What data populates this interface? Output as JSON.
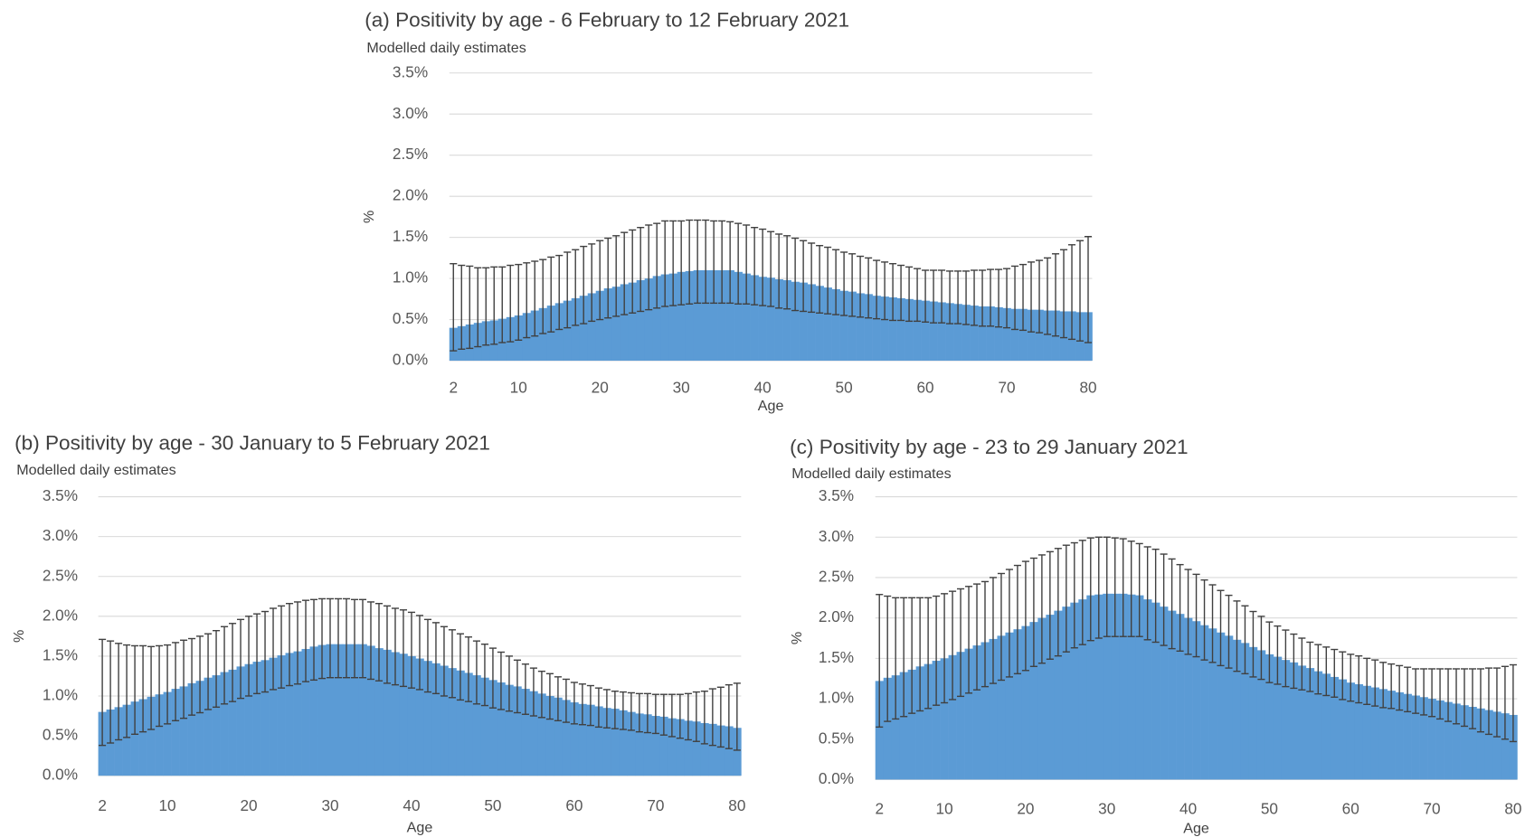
{
  "chart_data": [
    {
      "type": "bar",
      "title": "(a) Positivity by age - 6 February to 12 February 2021",
      "subtitle": "Modelled daily estimates",
      "ylabel": "%",
      "xlabel": "Age",
      "x": [
        2,
        3,
        4,
        5,
        6,
        7,
        8,
        9,
        10,
        11,
        12,
        13,
        14,
        15,
        16,
        17,
        18,
        19,
        20,
        21,
        22,
        23,
        24,
        25,
        26,
        27,
        28,
        29,
        30,
        31,
        32,
        33,
        34,
        35,
        36,
        37,
        38,
        39,
        40,
        41,
        42,
        43,
        44,
        45,
        46,
        47,
        48,
        49,
        50,
        51,
        52,
        53,
        54,
        55,
        56,
        57,
        58,
        59,
        60,
        61,
        62,
        63,
        64,
        65,
        66,
        67,
        68,
        69,
        70,
        71,
        72,
        73,
        74,
        75,
        76,
        77,
        78,
        79,
        80
      ],
      "values": [
        0.4,
        0.42,
        0.44,
        0.46,
        0.48,
        0.49,
        0.51,
        0.53,
        0.55,
        0.58,
        0.61,
        0.64,
        0.67,
        0.7,
        0.73,
        0.76,
        0.79,
        0.82,
        0.85,
        0.88,
        0.9,
        0.93,
        0.95,
        0.98,
        1.0,
        1.03,
        1.05,
        1.06,
        1.08,
        1.09,
        1.1,
        1.1,
        1.1,
        1.1,
        1.1,
        1.08,
        1.06,
        1.04,
        1.02,
        1.01,
        0.99,
        0.98,
        0.96,
        0.95,
        0.93,
        0.91,
        0.89,
        0.87,
        0.85,
        0.84,
        0.82,
        0.81,
        0.79,
        0.78,
        0.77,
        0.76,
        0.75,
        0.74,
        0.73,
        0.72,
        0.71,
        0.7,
        0.69,
        0.68,
        0.67,
        0.66,
        0.66,
        0.65,
        0.64,
        0.63,
        0.63,
        0.62,
        0.62,
        0.61,
        0.61,
        0.6,
        0.6,
        0.59,
        0.59
      ],
      "lower": [
        0.12,
        0.14,
        0.15,
        0.17,
        0.19,
        0.2,
        0.22,
        0.23,
        0.25,
        0.28,
        0.3,
        0.33,
        0.35,
        0.38,
        0.4,
        0.43,
        0.45,
        0.48,
        0.5,
        0.52,
        0.54,
        0.56,
        0.58,
        0.6,
        0.62,
        0.64,
        0.66,
        0.67,
        0.68,
        0.69,
        0.7,
        0.7,
        0.7,
        0.7,
        0.7,
        0.69,
        0.69,
        0.68,
        0.67,
        0.66,
        0.64,
        0.63,
        0.61,
        0.6,
        0.59,
        0.58,
        0.57,
        0.56,
        0.55,
        0.54,
        0.53,
        0.52,
        0.51,
        0.5,
        0.49,
        0.49,
        0.48,
        0.48,
        0.47,
        0.46,
        0.46,
        0.45,
        0.45,
        0.44,
        0.43,
        0.42,
        0.42,
        0.41,
        0.4,
        0.38,
        0.37,
        0.35,
        0.34,
        0.32,
        0.3,
        0.28,
        0.26,
        0.24,
        0.22
      ],
      "upper": [
        1.18,
        1.16,
        1.15,
        1.13,
        1.13,
        1.14,
        1.14,
        1.16,
        1.17,
        1.19,
        1.21,
        1.23,
        1.26,
        1.28,
        1.32,
        1.35,
        1.39,
        1.42,
        1.46,
        1.49,
        1.52,
        1.56,
        1.59,
        1.62,
        1.65,
        1.67,
        1.7,
        1.7,
        1.7,
        1.71,
        1.71,
        1.71,
        1.7,
        1.7,
        1.69,
        1.67,
        1.65,
        1.62,
        1.6,
        1.57,
        1.54,
        1.52,
        1.49,
        1.46,
        1.43,
        1.4,
        1.38,
        1.35,
        1.32,
        1.3,
        1.27,
        1.25,
        1.22,
        1.2,
        1.18,
        1.16,
        1.14,
        1.12,
        1.1,
        1.1,
        1.1,
        1.09,
        1.09,
        1.09,
        1.1,
        1.1,
        1.11,
        1.11,
        1.12,
        1.15,
        1.17,
        1.2,
        1.22,
        1.25,
        1.3,
        1.35,
        1.41,
        1.46,
        1.51
      ],
      "color": "#5b9bd5",
      "error_color": "#404040",
      "grid": true,
      "xlim": [
        1.5,
        80.5
      ],
      "xticks": [
        2,
        10,
        20,
        30,
        40,
        50,
        60,
        70,
        80
      ],
      "ylim": [
        0,
        3.5
      ],
      "yticks": [
        {
          "value": 0,
          "label": "0.0%"
        },
        {
          "value": 0.5,
          "label": "0.5%"
        },
        {
          "value": 1,
          "label": "1.0%"
        },
        {
          "value": 1.5,
          "label": "1.5%"
        },
        {
          "value": 2,
          "label": "2.0%"
        },
        {
          "value": 2.5,
          "label": "2.5%"
        },
        {
          "value": 3,
          "label": "3.0%"
        },
        {
          "value": 3.5,
          "label": "3.5%"
        }
      ]
    },
    {
      "type": "bar",
      "title": "(b) Positivity by age - 30 January to 5 February 2021",
      "subtitle": "Modelled daily estimates",
      "ylabel": "%",
      "xlabel": "Age",
      "x": [
        2,
        3,
        4,
        5,
        6,
        7,
        8,
        9,
        10,
        11,
        12,
        13,
        14,
        15,
        16,
        17,
        18,
        19,
        20,
        21,
        22,
        23,
        24,
        25,
        26,
        27,
        28,
        29,
        30,
        31,
        32,
        33,
        34,
        35,
        36,
        37,
        38,
        39,
        40,
        41,
        42,
        43,
        44,
        45,
        46,
        47,
        48,
        49,
        50,
        51,
        52,
        53,
        54,
        55,
        56,
        57,
        58,
        59,
        60,
        61,
        62,
        63,
        64,
        65,
        66,
        67,
        68,
        69,
        70,
        71,
        72,
        73,
        74,
        75,
        76,
        77,
        78,
        79,
        80
      ],
      "values": [
        0.8,
        0.83,
        0.86,
        0.89,
        0.93,
        0.96,
        0.99,
        1.02,
        1.05,
        1.09,
        1.12,
        1.16,
        1.19,
        1.23,
        1.26,
        1.3,
        1.33,
        1.37,
        1.4,
        1.43,
        1.45,
        1.48,
        1.51,
        1.54,
        1.56,
        1.59,
        1.62,
        1.64,
        1.65,
        1.65,
        1.65,
        1.65,
        1.65,
        1.63,
        1.6,
        1.58,
        1.55,
        1.53,
        1.5,
        1.47,
        1.44,
        1.41,
        1.38,
        1.35,
        1.32,
        1.29,
        1.26,
        1.23,
        1.2,
        1.17,
        1.14,
        1.12,
        1.09,
        1.06,
        1.03,
        1.0,
        0.98,
        0.95,
        0.92,
        0.9,
        0.89,
        0.87,
        0.85,
        0.84,
        0.82,
        0.8,
        0.78,
        0.77,
        0.75,
        0.74,
        0.72,
        0.71,
        0.69,
        0.68,
        0.66,
        0.65,
        0.63,
        0.62,
        0.6
      ],
      "lower": [
        0.38,
        0.41,
        0.45,
        0.48,
        0.52,
        0.55,
        0.58,
        0.62,
        0.65,
        0.69,
        0.72,
        0.76,
        0.79,
        0.83,
        0.86,
        0.9,
        0.93,
        0.97,
        1.0,
        1.03,
        1.05,
        1.08,
        1.1,
        1.13,
        1.15,
        1.18,
        1.2,
        1.22,
        1.23,
        1.23,
        1.23,
        1.23,
        1.23,
        1.21,
        1.19,
        1.16,
        1.14,
        1.12,
        1.1,
        1.08,
        1.05,
        1.03,
        1.0,
        0.98,
        0.95,
        0.93,
        0.9,
        0.88,
        0.85,
        0.83,
        0.81,
        0.79,
        0.77,
        0.75,
        0.73,
        0.71,
        0.69,
        0.67,
        0.65,
        0.64,
        0.63,
        0.61,
        0.6,
        0.59,
        0.58,
        0.57,
        0.55,
        0.54,
        0.53,
        0.51,
        0.49,
        0.47,
        0.45,
        0.43,
        0.4,
        0.38,
        0.36,
        0.34,
        0.32
      ],
      "upper": [
        1.71,
        1.69,
        1.66,
        1.64,
        1.63,
        1.63,
        1.62,
        1.63,
        1.64,
        1.67,
        1.7,
        1.72,
        1.75,
        1.78,
        1.82,
        1.87,
        1.91,
        1.96,
        2.0,
        2.03,
        2.06,
        2.1,
        2.13,
        2.16,
        2.18,
        2.2,
        2.21,
        2.22,
        2.22,
        2.22,
        2.22,
        2.21,
        2.21,
        2.18,
        2.16,
        2.13,
        2.1,
        2.08,
        2.05,
        2.01,
        1.96,
        1.92,
        1.87,
        1.83,
        1.78,
        1.74,
        1.69,
        1.65,
        1.6,
        1.55,
        1.5,
        1.45,
        1.4,
        1.35,
        1.31,
        1.28,
        1.24,
        1.21,
        1.17,
        1.15,
        1.13,
        1.1,
        1.08,
        1.06,
        1.05,
        1.04,
        1.03,
        1.03,
        1.02,
        1.02,
        1.02,
        1.02,
        1.03,
        1.05,
        1.06,
        1.09,
        1.11,
        1.14,
        1.16
      ],
      "color": "#5b9bd5",
      "error_color": "#404040",
      "grid": true,
      "xlim": [
        1.5,
        80.5
      ],
      "xticks": [
        2,
        10,
        20,
        30,
        40,
        50,
        60,
        70,
        80
      ],
      "ylim": [
        0,
        3.5
      ],
      "yticks": [
        {
          "value": 0,
          "label": "0.0%"
        },
        {
          "value": 0.5,
          "label": "0.5%"
        },
        {
          "value": 1,
          "label": "1.0%"
        },
        {
          "value": 1.5,
          "label": "1.5%"
        },
        {
          "value": 2,
          "label": "2.0%"
        },
        {
          "value": 2.5,
          "label": "2.5%"
        },
        {
          "value": 3,
          "label": "3.0%"
        },
        {
          "value": 3.5,
          "label": "3.5%"
        }
      ]
    },
    {
      "type": "bar",
      "title": "(c) Positivity by age - 23 to 29 January 2021",
      "subtitle": "Modelled daily estimates",
      "ylabel": "%",
      "xlabel": "Age",
      "x": [
        2,
        3,
        4,
        5,
        6,
        7,
        8,
        9,
        10,
        11,
        12,
        13,
        14,
        15,
        16,
        17,
        18,
        19,
        20,
        21,
        22,
        23,
        24,
        25,
        26,
        27,
        28,
        29,
        30,
        31,
        32,
        33,
        34,
        35,
        36,
        37,
        38,
        39,
        40,
        41,
        42,
        43,
        44,
        45,
        46,
        47,
        48,
        49,
        50,
        51,
        52,
        53,
        54,
        55,
        56,
        57,
        58,
        59,
        60,
        61,
        62,
        63,
        64,
        65,
        66,
        67,
        68,
        69,
        70,
        71,
        72,
        73,
        74,
        75,
        76,
        77,
        78,
        79,
        80
      ],
      "values": [
        1.22,
        1.26,
        1.29,
        1.33,
        1.36,
        1.4,
        1.43,
        1.47,
        1.5,
        1.54,
        1.58,
        1.62,
        1.66,
        1.7,
        1.74,
        1.78,
        1.82,
        1.86,
        1.9,
        1.95,
        2.0,
        2.04,
        2.09,
        2.14,
        2.19,
        2.23,
        2.28,
        2.29,
        2.3,
        2.3,
        2.3,
        2.29,
        2.28,
        2.23,
        2.19,
        2.14,
        2.09,
        2.05,
        2.0,
        1.96,
        1.91,
        1.87,
        1.82,
        1.78,
        1.73,
        1.69,
        1.64,
        1.6,
        1.55,
        1.52,
        1.48,
        1.45,
        1.41,
        1.38,
        1.34,
        1.31,
        1.27,
        1.24,
        1.2,
        1.18,
        1.16,
        1.14,
        1.12,
        1.1,
        1.08,
        1.06,
        1.04,
        1.02,
        1.0,
        0.98,
        0.96,
        0.94,
        0.92,
        0.9,
        0.88,
        0.86,
        0.84,
        0.82,
        0.8
      ],
      "lower": [
        0.65,
        0.72,
        0.75,
        0.78,
        0.82,
        0.85,
        0.88,
        0.92,
        0.95,
        0.99,
        1.03,
        1.07,
        1.11,
        1.15,
        1.19,
        1.23,
        1.27,
        1.31,
        1.35,
        1.4,
        1.44,
        1.49,
        1.53,
        1.58,
        1.63,
        1.67,
        1.72,
        1.75,
        1.77,
        1.77,
        1.77,
        1.77,
        1.77,
        1.73,
        1.7,
        1.66,
        1.62,
        1.59,
        1.55,
        1.52,
        1.48,
        1.45,
        1.41,
        1.38,
        1.34,
        1.31,
        1.27,
        1.24,
        1.2,
        1.18,
        1.15,
        1.13,
        1.11,
        1.09,
        1.06,
        1.04,
        1.02,
        0.99,
        0.97,
        0.95,
        0.93,
        0.91,
        0.89,
        0.88,
        0.86,
        0.84,
        0.82,
        0.8,
        0.78,
        0.75,
        0.72,
        0.69,
        0.66,
        0.63,
        0.59,
        0.56,
        0.53,
        0.5,
        0.47
      ],
      "upper": [
        2.29,
        2.27,
        2.25,
        2.25,
        2.25,
        2.25,
        2.25,
        2.27,
        2.3,
        2.33,
        2.36,
        2.39,
        2.42,
        2.45,
        2.5,
        2.55,
        2.6,
        2.65,
        2.7,
        2.74,
        2.78,
        2.82,
        2.86,
        2.9,
        2.93,
        2.96,
        2.99,
        3.0,
        3.0,
        2.99,
        2.98,
        2.95,
        2.92,
        2.88,
        2.85,
        2.79,
        2.73,
        2.66,
        2.6,
        2.54,
        2.47,
        2.41,
        2.34,
        2.28,
        2.21,
        2.15,
        2.08,
        2.02,
        1.95,
        1.9,
        1.85,
        1.8,
        1.75,
        1.7,
        1.67,
        1.64,
        1.61,
        1.58,
        1.55,
        1.53,
        1.5,
        1.48,
        1.45,
        1.43,
        1.41,
        1.39,
        1.37,
        1.37,
        1.37,
        1.37,
        1.37,
        1.37,
        1.37,
        1.37,
        1.37,
        1.38,
        1.38,
        1.4,
        1.42
      ],
      "color": "#5b9bd5",
      "error_color": "#404040",
      "grid": true,
      "xlim": [
        1.5,
        80.5
      ],
      "xticks": [
        2,
        10,
        20,
        30,
        40,
        50,
        60,
        70,
        80
      ],
      "ylim": [
        0,
        3.5
      ],
      "yticks": [
        {
          "value": 0,
          "label": "0.0%"
        },
        {
          "value": 0.5,
          "label": "0.5%"
        },
        {
          "value": 1,
          "label": "1.0%"
        },
        {
          "value": 1.5,
          "label": "1.5%"
        },
        {
          "value": 2,
          "label": "2.0%"
        },
        {
          "value": 2.5,
          "label": "2.5%"
        },
        {
          "value": 3,
          "label": "3.0%"
        },
        {
          "value": 3.5,
          "label": "3.5%"
        }
      ]
    }
  ]
}
